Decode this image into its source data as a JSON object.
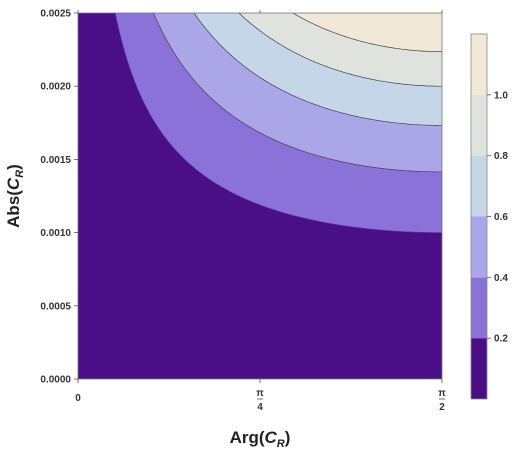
{
  "chart_data": {
    "type": "heatmap",
    "subtype": "contour",
    "xlabel": {
      "prefix": "Arg(",
      "var": "C",
      "sub": "R",
      "suffix": ")"
    },
    "ylabel": {
      "prefix": "Abs(",
      "var": "C",
      "sub": "R",
      "suffix": ")"
    },
    "xlim": [
      0,
      1.5708
    ],
    "ylim": [
      0,
      0.0025
    ],
    "x_ticks": [
      {
        "value": 0,
        "num": "0",
        "den": ""
      },
      {
        "value": 0.7854,
        "num": "π",
        "den": "4"
      },
      {
        "value": 1.5708,
        "num": "π",
        "den": "2"
      }
    ],
    "y_ticks": [
      {
        "value": 0.0,
        "label": "0.0000"
      },
      {
        "value": 0.0005,
        "label": "0.0005"
      },
      {
        "value": 0.001,
        "label": "0.0010"
      },
      {
        "value": 0.0015,
        "label": "0.0015"
      },
      {
        "value": 0.002,
        "label": "0.0020"
      },
      {
        "value": 0.0025,
        "label": "0.0025"
      }
    ],
    "levels": [
      0.2,
      0.4,
      0.6,
      0.8,
      1.0
    ],
    "contour_model": "c * sin(x) * y^2",
    "contour_constant": 200000,
    "colorbar": {
      "range": [
        0,
        1.2
      ],
      "ticks": [
        {
          "value": 0.2,
          "label": "0.2"
        },
        {
          "value": 0.4,
          "label": "0.4"
        },
        {
          "value": 0.6,
          "label": "0.6"
        },
        {
          "value": 0.8,
          "label": "0.8"
        },
        {
          "value": 1.0,
          "label": "1.0"
        }
      ]
    },
    "band_colors": [
      "#4a0e87",
      "#8a72d9",
      "#aaa6e7",
      "#c4d6e8",
      "#e0e2de",
      "#f1e8d8"
    ],
    "grid": false,
    "legend": "colorbar-right"
  }
}
